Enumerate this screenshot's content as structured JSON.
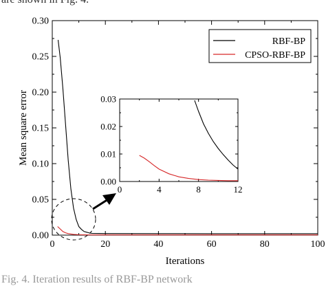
{
  "captions": {
    "top": "are shown in Fig. 4.",
    "bottom": "Fig. 4. Iteration results of RBF-BP network"
  },
  "chart_data": [
    {
      "type": "line",
      "xlabel": "Iterations",
      "ylabel": "Mean square error",
      "xlim": [
        0,
        100
      ],
      "ylim": [
        0,
        0.3
      ],
      "xticks": [
        "0",
        "20",
        "40",
        "60",
        "80",
        "100"
      ],
      "yticks": [
        "0.00",
        "0.05",
        "0.10",
        "0.15",
        "0.20",
        "0.25",
        "0.30"
      ],
      "legend_position": "top-right",
      "series": [
        {
          "name": "RBF-BP",
          "color": "#000000",
          "x": [
            2.2,
            3,
            4,
            5,
            6,
            7,
            8,
            9,
            10,
            11,
            12,
            13,
            14,
            15,
            20,
            40,
            60,
            80,
            100
          ],
          "values": [
            0.273,
            0.248,
            0.205,
            0.155,
            0.105,
            0.065,
            0.038,
            0.022,
            0.012,
            0.008,
            0.005,
            0.004,
            0.003,
            0.0025,
            0.0022,
            0.0021,
            0.002,
            0.002,
            0.002
          ]
        },
        {
          "name": "CPSO-RBF-BP",
          "color": "#d62728",
          "x": [
            2,
            3,
            4,
            5,
            6,
            8,
            10,
            12,
            15,
            20,
            40,
            60,
            80,
            100
          ],
          "values": [
            0.012,
            0.0085,
            0.005,
            0.0032,
            0.0021,
            0.001,
            0.0006,
            0.0004,
            0.0003,
            0.0003,
            0.0003,
            0.0003,
            0.0003,
            0.0003
          ]
        }
      ]
    },
    {
      "type": "line",
      "title": "",
      "xlim": [
        0,
        12
      ],
      "ylim": [
        0,
        0.03
      ],
      "xticks": [
        "0",
        "4",
        "8",
        "12"
      ],
      "yticks": [
        "0.00",
        "0.01",
        "0.02",
        "0.03"
      ],
      "series": [
        {
          "color": "#000000",
          "x": [
            7.6,
            8,
            8.5,
            9,
            9.5,
            10,
            10.5,
            11,
            11.5,
            12
          ],
          "values": [
            0.0295,
            0.0255,
            0.021,
            0.0175,
            0.0145,
            0.012,
            0.0098,
            0.0078,
            0.006,
            0.0045
          ]
        },
        {
          "color": "#d62728",
          "x": [
            2,
            2.5,
            3,
            3.5,
            4,
            5,
            6,
            7,
            8,
            9,
            10,
            11,
            12
          ],
          "values": [
            0.0095,
            0.0085,
            0.0072,
            0.0058,
            0.0045,
            0.0028,
            0.0017,
            0.0011,
            0.0007,
            0.0005,
            0.0004,
            0.0003,
            0.0003
          ]
        }
      ]
    }
  ]
}
